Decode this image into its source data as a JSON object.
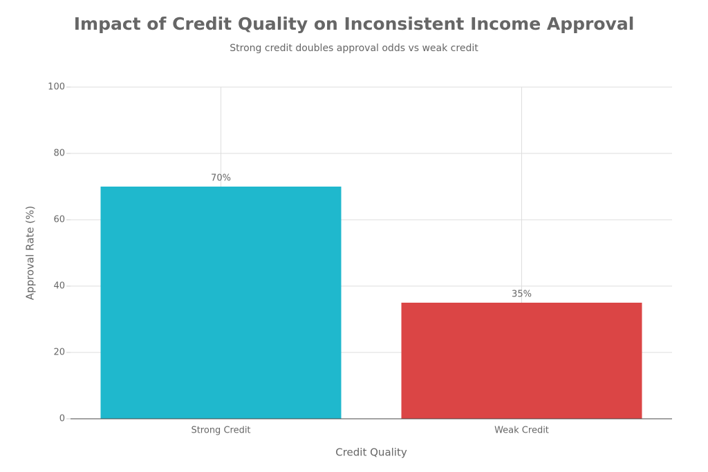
{
  "chart_data": {
    "type": "bar",
    "title": "Impact of Credit Quality on Inconsistent Income Approval",
    "subtitle": "Strong credit doubles approval odds vs weak credit",
    "x_label": "Credit Quality",
    "y_label": "Approval Rate (%)",
    "categories": [
      "Strong Credit",
      "Weak Credit"
    ],
    "values": [
      70,
      35
    ],
    "value_labels": [
      "70%",
      "35%"
    ],
    "colors": [
      "#1fb8cd",
      "#db4545"
    ],
    "ylim": [
      0,
      100
    ],
    "yticks": [
      0,
      20,
      40,
      60,
      80,
      100
    ],
    "grid": true
  }
}
